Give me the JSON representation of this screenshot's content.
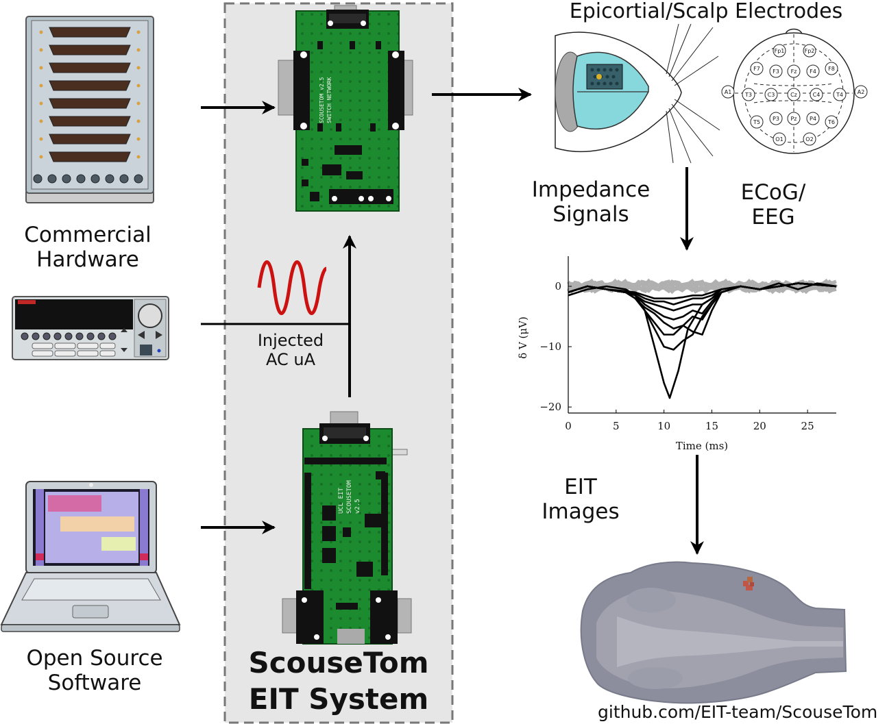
{
  "labels": {
    "commercial_hardware": [
      "Commercial",
      "Hardware"
    ],
    "open_source_software": [
      "Open Source",
      "Software"
    ],
    "injected_ac": [
      "Injected",
      "AC uA"
    ],
    "system_title": [
      "ScouseTom",
      "EIT System"
    ],
    "epicortial": "Epicortial/Scalp Electrodes",
    "impedance_signals": [
      "Impedance",
      "Signals"
    ],
    "ecog_eeg": [
      "ECoG/",
      "EEG"
    ],
    "eit_images": [
      "EIT",
      "Images"
    ],
    "github": "github.com/EIT-team/ScouseTom"
  },
  "eeg_electrodes": [
    "Fp1",
    "Fp2",
    "F7",
    "F3",
    "Fz",
    "F4",
    "F8",
    "A1",
    "T3",
    "C3",
    "Cz",
    "C4",
    "T4",
    "A2",
    "T5",
    "P3",
    "Pz",
    "P4",
    "T6",
    "O1",
    "O2"
  ],
  "pcb_text": {
    "top_board": [
      "SCOUSETOM v2.5",
      "SWITCH NETWORK"
    ],
    "bottom_board": [
      "UCL EIT",
      "SCOUSETOM",
      "v2.5"
    ]
  },
  "chart_data": {
    "type": "line",
    "xlabel": "Time (ms)",
    "ylabel": "δ V (μV)",
    "xlim": [
      0,
      28
    ],
    "ylim": [
      -21,
      5
    ],
    "xticks": [
      0,
      5,
      10,
      15,
      20,
      25
    ],
    "yticks": [
      0,
      -10,
      -20
    ],
    "series": [
      {
        "x": [
          0,
          2,
          4,
          6,
          7,
          8,
          9,
          10,
          10.6,
          11.5,
          12.5,
          14,
          16,
          18,
          20,
          22,
          24,
          26,
          28
        ],
        "y": [
          -1.5,
          -0.5,
          0,
          -0.5,
          -1.5,
          -4,
          -10,
          -16,
          -18.5,
          -14,
          -7,
          -3,
          -1,
          0,
          -0.5,
          0.5,
          -0.5,
          0.5,
          0
        ]
      },
      {
        "x": [
          0,
          2,
          4,
          6,
          7,
          8,
          9,
          10,
          11,
          12,
          13,
          14,
          15,
          16,
          18,
          20,
          24,
          28
        ],
        "y": [
          -1,
          0,
          -0.5,
          -1,
          -2,
          -4,
          -7,
          -10,
          -10.5,
          -9,
          -8,
          -5,
          -3,
          -1,
          0,
          -0.5,
          0.5,
          0
        ]
      },
      {
        "x": [
          0,
          2,
          4,
          6,
          7,
          8,
          9,
          10,
          11,
          12,
          13,
          14,
          15,
          16,
          18,
          20,
          24,
          28
        ],
        "y": [
          -1,
          0,
          -0.5,
          -1,
          -2,
          -4,
          -6,
          -8,
          -8,
          -6.5,
          -7.5,
          -8,
          -4,
          -1,
          0,
          -0.5,
          0.5,
          0
        ]
      },
      {
        "x": [
          0,
          2,
          4,
          6,
          7,
          8,
          9,
          10,
          11,
          12,
          13,
          14,
          15,
          16,
          18,
          20,
          24,
          28
        ],
        "y": [
          -1,
          0,
          -0.5,
          -1,
          -2,
          -3.5,
          -4.5,
          -6,
          -7,
          -6.5,
          -5,
          -5.5,
          -3,
          -1,
          0,
          -0.5,
          0.5,
          0
        ]
      },
      {
        "x": [
          0,
          2,
          4,
          6,
          7,
          8,
          9,
          10,
          11,
          12,
          13,
          14,
          15,
          16,
          18,
          20,
          24,
          28
        ],
        "y": [
          -1,
          0,
          -0.5,
          -1,
          -1.5,
          -3,
          -4,
          -5,
          -5.5,
          -5,
          -4,
          -4.5,
          -2.5,
          -1,
          0,
          -0.5,
          0.5,
          0
        ]
      },
      {
        "x": [
          0,
          2,
          4,
          6,
          7,
          8,
          9,
          10,
          11,
          12,
          13,
          14,
          15,
          16,
          18,
          20,
          24,
          28
        ],
        "y": [
          -1,
          0,
          -0.5,
          -1,
          -1.5,
          -2.5,
          -3,
          -3.5,
          -4,
          -3.5,
          -3,
          -3,
          -2,
          -0.5,
          0,
          -0.5,
          0.5,
          0
        ]
      },
      {
        "x": [
          0,
          2,
          4,
          6,
          7,
          8,
          9,
          10,
          11,
          12,
          13,
          14,
          15,
          16,
          18,
          20,
          24,
          28
        ],
        "y": [
          -1,
          0,
          -0.5,
          -1,
          -1.2,
          -2,
          -2.5,
          -2.5,
          -3,
          -2.5,
          -2,
          -2,
          -1.5,
          -0.5,
          0,
          -0.5,
          0.5,
          0
        ]
      },
      {
        "x": [
          0,
          2,
          4,
          6,
          7,
          8,
          9,
          10,
          11,
          12,
          13,
          14,
          15,
          16,
          18,
          20,
          24,
          28
        ],
        "y": [
          -1,
          0,
          -0.5,
          -0.8,
          -1,
          -1.5,
          -2,
          -2,
          -2,
          -1.8,
          -1.5,
          -1.5,
          -1,
          -0.5,
          0,
          -0.5,
          0.5,
          0
        ]
      }
    ]
  }
}
